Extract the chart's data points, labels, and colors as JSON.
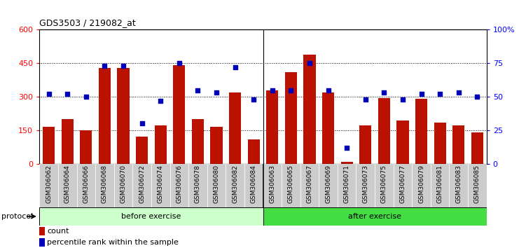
{
  "title": "GDS3503 / 219082_at",
  "categories": [
    "GSM306062",
    "GSM306064",
    "GSM306066",
    "GSM306068",
    "GSM306070",
    "GSM306072",
    "GSM306074",
    "GSM306076",
    "GSM306078",
    "GSM306080",
    "GSM306082",
    "GSM306084",
    "GSM306063",
    "GSM306065",
    "GSM306067",
    "GSM306069",
    "GSM306071",
    "GSM306073",
    "GSM306075",
    "GSM306077",
    "GSM306079",
    "GSM306081",
    "GSM306083",
    "GSM306085"
  ],
  "bar_values": [
    165,
    200,
    150,
    430,
    430,
    120,
    170,
    440,
    200,
    165,
    320,
    110,
    330,
    410,
    490,
    320,
    8,
    170,
    295,
    195,
    290,
    185,
    170,
    140
  ],
  "dot_values_pct": [
    52,
    52,
    50,
    73,
    73,
    30,
    47,
    75,
    55,
    53,
    72,
    48,
    55,
    55,
    75,
    55,
    12,
    48,
    53,
    48,
    52,
    52,
    53,
    50
  ],
  "n_before": 12,
  "n_after": 12,
  "left_ylim": [
    0,
    600
  ],
  "right_ylim": [
    0,
    100
  ],
  "left_yticks": [
    0,
    150,
    300,
    450,
    600
  ],
  "right_yticks": [
    0,
    25,
    50,
    75,
    100
  ],
  "right_yticklabels": [
    "0",
    "25",
    "50",
    "75",
    "100%"
  ],
  "bar_color": "#BB1100",
  "dot_color": "#0000BB",
  "protocol_label": "protocol",
  "legend_count": "count",
  "legend_pct": "percentile rank within the sample",
  "before_color": "#CCFFCC",
  "after_color": "#44DD44",
  "xtick_bg": "#CCCCCC",
  "grid_yticks": [
    150,
    300,
    450
  ]
}
